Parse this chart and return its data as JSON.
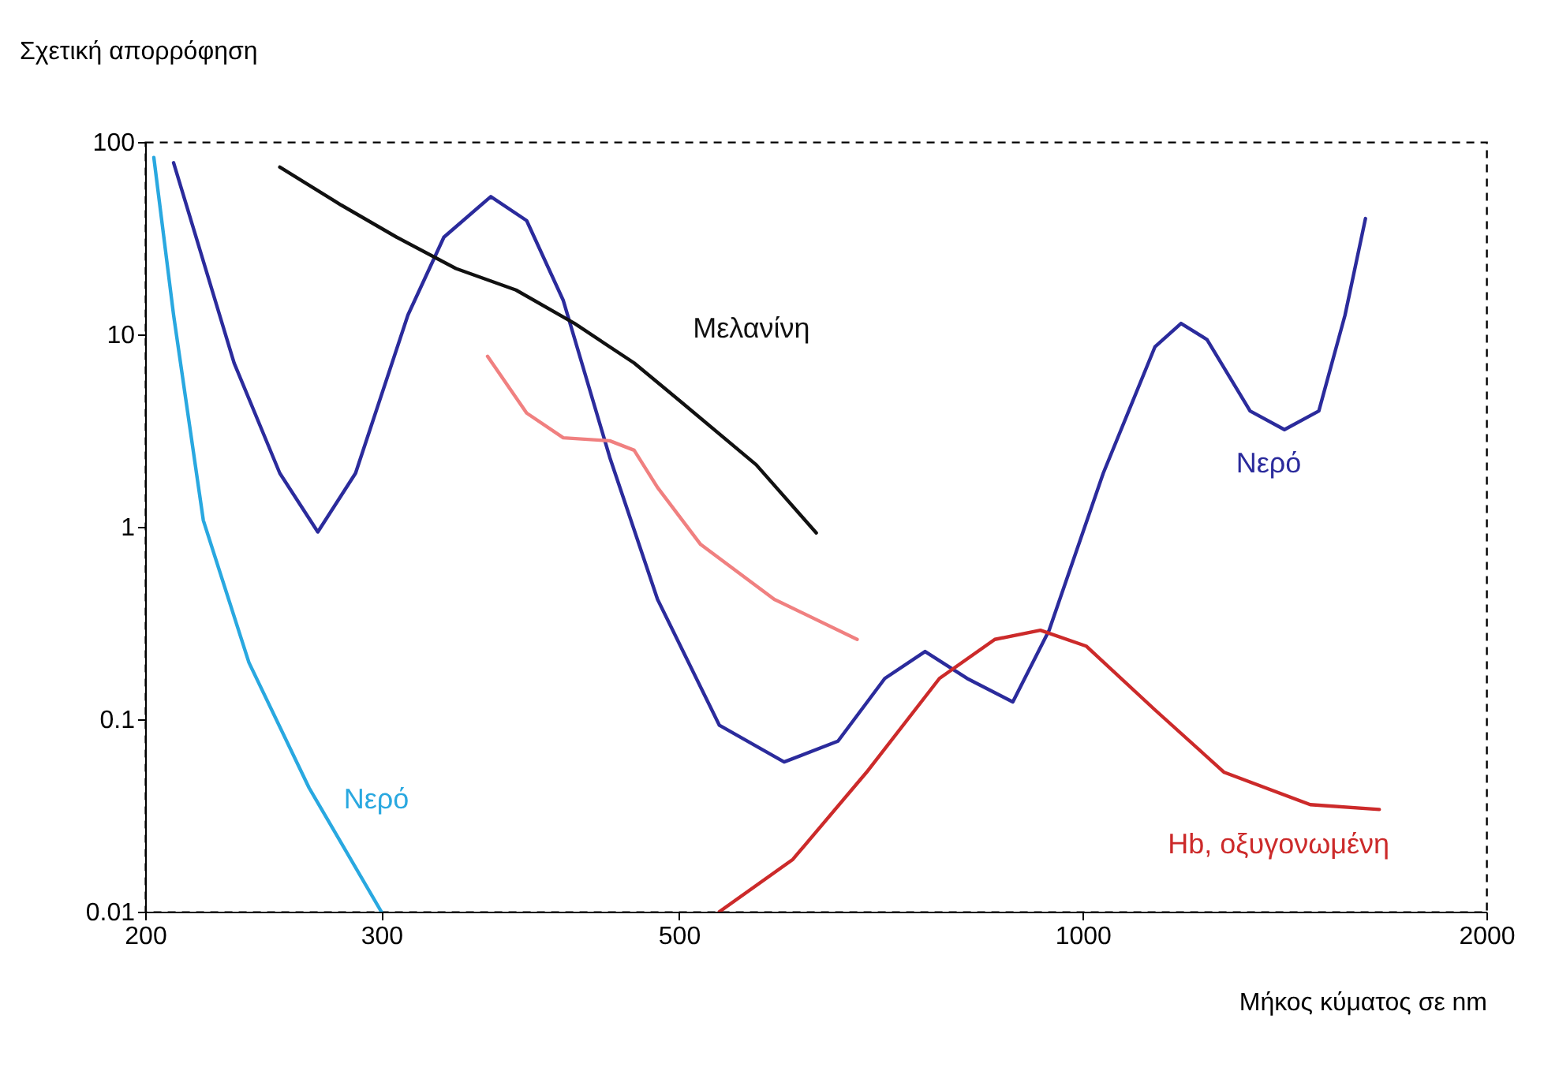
{
  "chart_data": {
    "type": "line",
    "ylabel": "Σχετική απορρόφηση",
    "xlabel": "Μήκος κύματος σε nm",
    "log": "xy",
    "xlim": [
      200,
      2000
    ],
    "xticks": [
      200,
      300,
      500,
      1000,
      2000
    ],
    "ylim": [
      0.01,
      100
    ],
    "yticks": [
      0.01,
      0.1,
      1,
      10,
      100
    ],
    "grid": false,
    "marker": "none",
    "line_style": "solid",
    "series": [
      {
        "name": "Νερό",
        "color": "#29a8e0",
        "x": [
          203,
          210,
          221,
          239,
          265,
          300
        ],
        "values": [
          83,
          12.6,
          1.08,
          0.197,
          0.044,
          0.01
        ]
      },
      {
        "name": "Νερό",
        "color": "#2b2b9c",
        "x": [
          210,
          233,
          252,
          269,
          287,
          314,
          334,
          362,
          385,
          410,
          444,
          482,
          536,
          599,
          657,
          712,
          763,
          820,
          887,
          944,
          1036,
          1132,
          1184,
          1238,
          1333,
          1414,
          1500,
          1569,
          1625
        ],
        "values": [
          78,
          7.1,
          1.9,
          0.94,
          1.9,
          12.6,
          32,
          52,
          39,
          15,
          2.3,
          0.42,
          0.093,
          0.06,
          0.077,
          0.163,
          0.225,
          0.163,
          0.123,
          0.29,
          1.9,
          8.6,
          11.4,
          9.4,
          4.0,
          3.2,
          4.0,
          12.6,
          40
        ]
      },
      {
        "name": "Μελανίνη",
        "color": "#111111",
        "x": [
          252,
          280,
          308,
          341,
          378,
          418,
          463,
          503,
          571,
          633
        ],
        "values": [
          74,
          47,
          32,
          22,
          17,
          11.4,
          7.1,
          4.4,
          2.1,
          0.93
        ]
      },
      {
        "color": "#f08080",
        "x": [
          360,
          385,
          410,
          444,
          463,
          482,
          519,
          589,
          679
        ],
        "values": [
          7.7,
          3.9,
          2.9,
          2.8,
          2.5,
          1.6,
          0.81,
          0.42,
          0.26
        ]
      },
      {
        "name": "Hb, οξυγονωμένη",
        "color": "#cc2a2a",
        "x": [
          536,
          608,
          690,
          782,
          860,
          930,
          1006,
          1132,
          1275,
          1478,
          1664
        ],
        "values": [
          0.01,
          0.0187,
          0.053,
          0.163,
          0.26,
          0.29,
          0.24,
          0.112,
          0.053,
          0.036,
          0.034
        ]
      }
    ]
  }
}
